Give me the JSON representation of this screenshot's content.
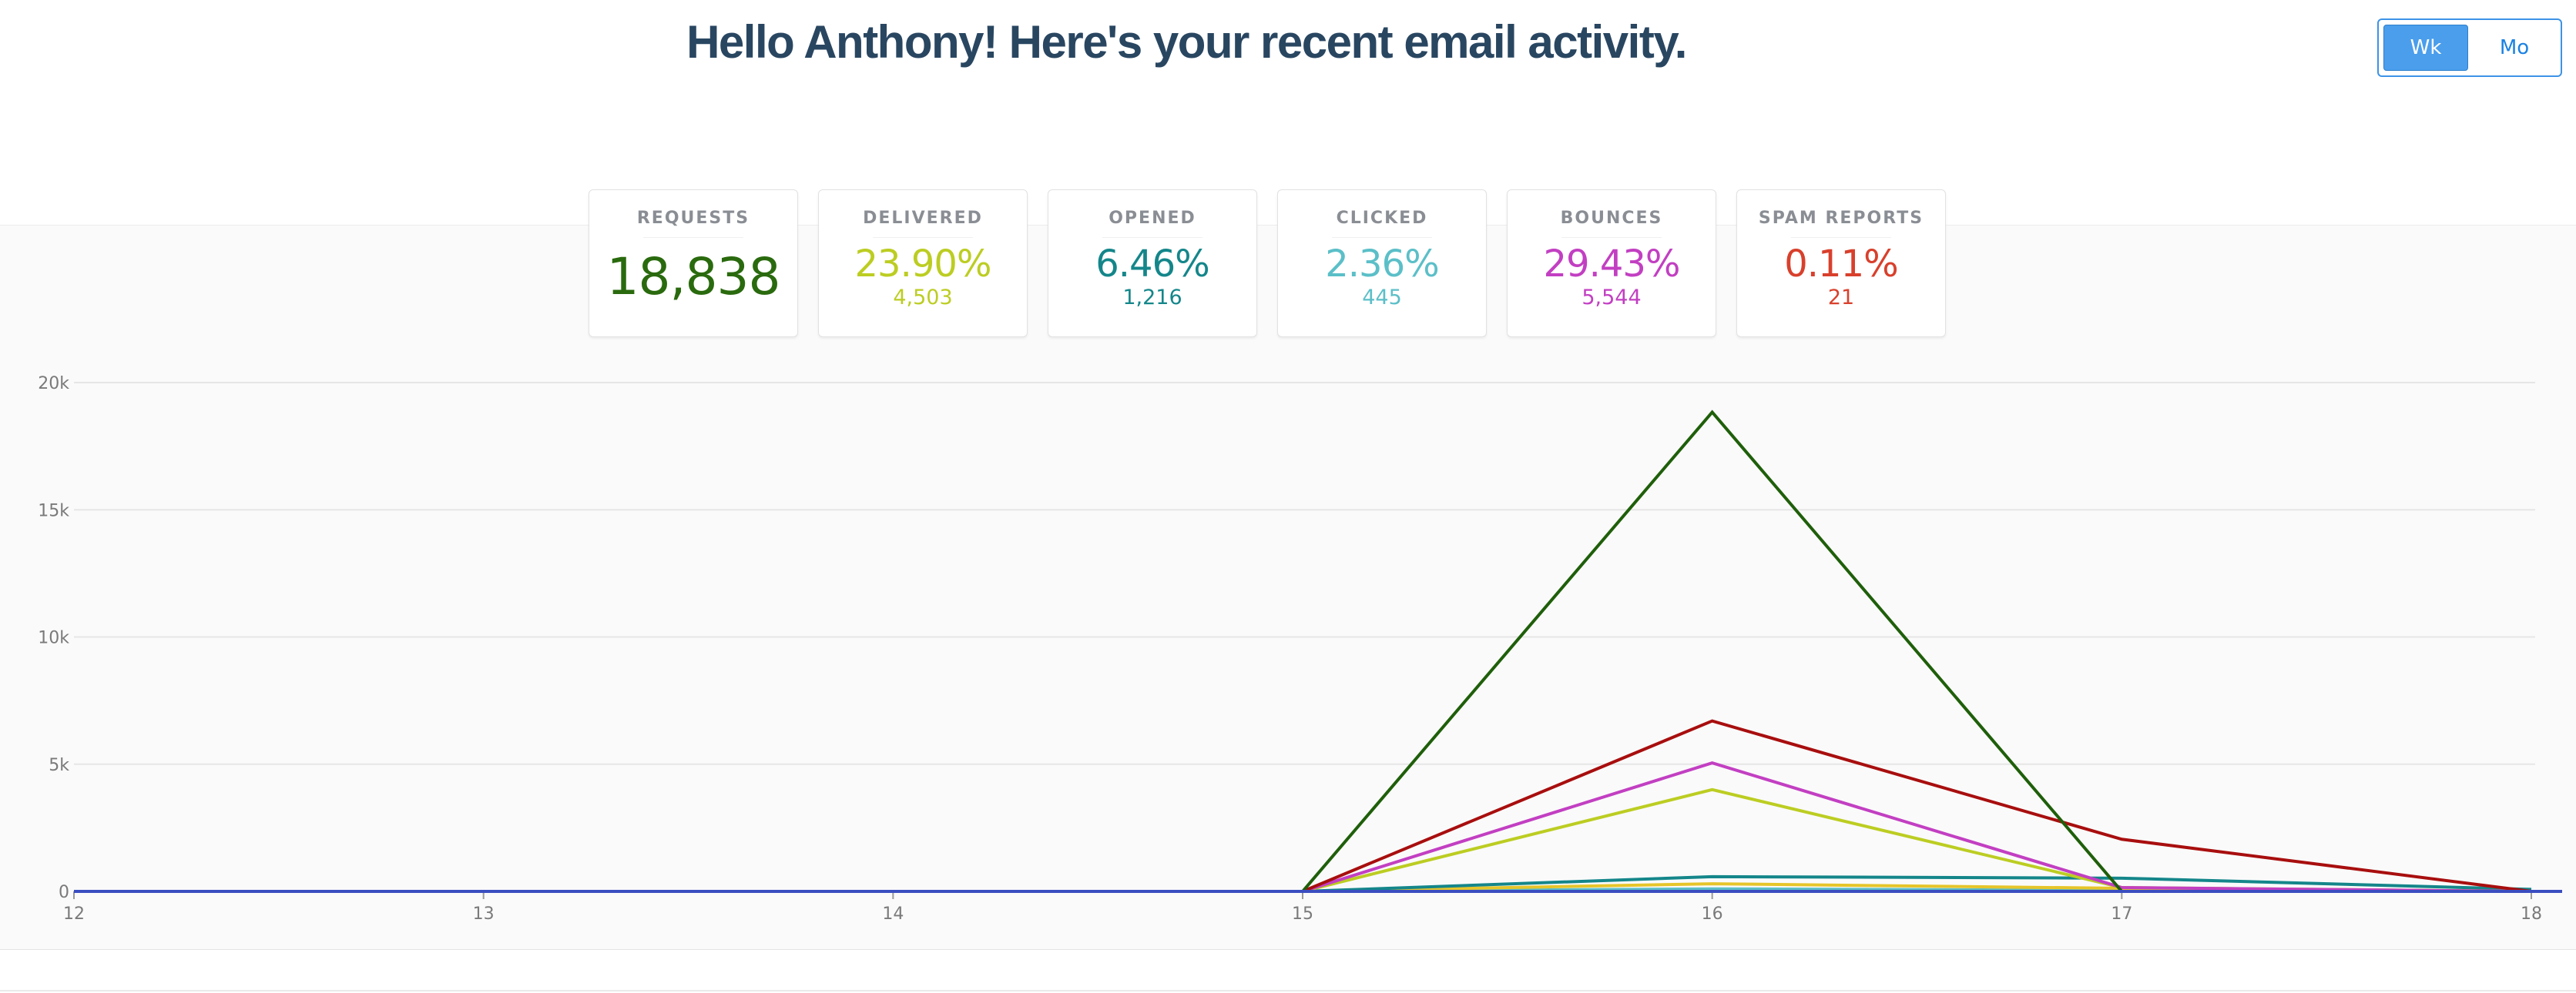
{
  "header": {
    "title": "Hello Anthony! Here's your recent email activity."
  },
  "period_toggle": {
    "options": [
      {
        "label": "Wk",
        "active": true
      },
      {
        "label": "Mo",
        "active": false
      }
    ]
  },
  "stats": [
    {
      "label": "REQUESTS",
      "value": "18,838",
      "sub": "",
      "color": "#2a6a0e"
    },
    {
      "label": "DELIVERED",
      "value": "23.90%",
      "sub": "4,503",
      "color": "#bccd22"
    },
    {
      "label": "OPENED",
      "value": "6.46%",
      "sub": "1,216",
      "color": "#14868a"
    },
    {
      "label": "CLICKED",
      "value": "2.36%",
      "sub": "445",
      "color": "#5bbfc8"
    },
    {
      "label": "BOUNCES",
      "value": "29.43%",
      "sub": "5,544",
      "color": "#c23fc2"
    },
    {
      "label": "SPAM REPORTS",
      "value": "0.11%",
      "sub": "21",
      "color": "#d8402c"
    }
  ],
  "chart_data": {
    "type": "line",
    "x": [
      "12",
      "13",
      "14",
      "15",
      "16",
      "17",
      "18"
    ],
    "y_ticks": [
      "0",
      "5k",
      "10k",
      "15k",
      "20k"
    ],
    "ylim": [
      0,
      20000
    ],
    "grid": true,
    "series": [
      {
        "color": "#1f5f0a",
        "values": [
          0,
          0,
          0,
          0,
          18838,
          0,
          0
        ]
      },
      {
        "color": "#a80e0e",
        "values": [
          0,
          0,
          0,
          0,
          6700,
          2050,
          0
        ]
      },
      {
        "color": "#c23fc2",
        "values": [
          0,
          0,
          0,
          0,
          5050,
          150,
          0
        ]
      },
      {
        "color": "#bccd22",
        "values": [
          0,
          0,
          0,
          0,
          4000,
          150,
          0
        ]
      },
      {
        "color": "#14868a",
        "values": [
          0,
          0,
          0,
          0,
          580,
          520,
          80
        ]
      },
      {
        "color": "#e6c52a",
        "values": [
          0,
          0,
          0,
          0,
          300,
          120,
          0
        ]
      },
      {
        "color": "#5bbfc8",
        "values": [
          0,
          0,
          0,
          0,
          100,
          40,
          0
        ]
      },
      {
        "color": "#3b4ec0",
        "values": [
          0,
          0,
          0,
          0,
          0,
          0,
          0
        ]
      }
    ]
  }
}
